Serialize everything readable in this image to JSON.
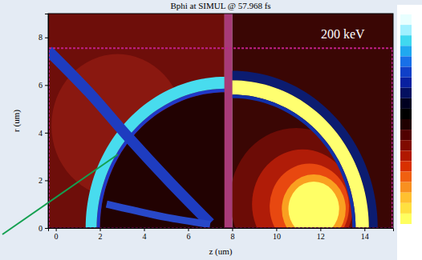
{
  "chart_data": {
    "type": "field_map",
    "title": "Bphi at SIMUL @ 57.968 fs",
    "x_label": "z (um)",
    "y_label": "r (um)",
    "annotation": "200 keV",
    "xlim": [
      -0.35,
      15.3
    ],
    "ylim": [
      0,
      9
    ],
    "xticks": [
      0,
      2,
      4,
      6,
      8,
      10,
      12,
      14
    ],
    "yticks": [
      0,
      2,
      4,
      6,
      8
    ],
    "grid": false,
    "series": [
      {
        "type": "rect",
        "z": [
          -0.35,
          7.65
        ],
        "r": [
          0,
          9
        ],
        "color": "#6e0e0a"
      },
      {
        "type": "disk",
        "center": [
          2.8,
          4.3
        ],
        "radius": 3.0,
        "zclip": [
          -0.35,
          7.65
        ],
        "color": "#8a1810"
      },
      {
        "type": "rect",
        "z": [
          8.0,
          15.3
        ],
        "r": [
          0,
          9
        ],
        "color": "#3a0604"
      },
      {
        "type": "disk",
        "center": [
          7.7,
          0
        ],
        "radius": 5.7,
        "zclip": [
          -0.35,
          7.65
        ],
        "color": "#220202"
      },
      {
        "type": "annulus",
        "center": [
          7.7,
          0
        ],
        "radii": [
          5.7,
          5.85
        ],
        "zclip": [
          -0.35,
          7.65
        ],
        "color": "#2038c8"
      },
      {
        "type": "annulus",
        "center": [
          7.7,
          0
        ],
        "radii": [
          5.85,
          6.35
        ],
        "zclip": [
          -0.35,
          7.65
        ],
        "color": "#48dcee"
      },
      {
        "type": "band",
        "points": [
          [
            -0.35,
            7.45
          ],
          [
            1.5,
            5.7
          ],
          [
            3.3,
            3.8
          ],
          [
            5.2,
            1.9
          ],
          [
            7.0,
            0.2
          ]
        ],
        "width": 0.45,
        "zclip": [
          -0.35,
          7.65
        ],
        "color": "#1e3cc0"
      },
      {
        "type": "band",
        "points": [
          [
            2.3,
            1.0
          ],
          [
            3.5,
            0.75
          ],
          [
            5.0,
            0.45
          ],
          [
            7.0,
            0.15
          ]
        ],
        "width": 0.3,
        "zclip": [
          -0.35,
          7.65
        ],
        "color": "#2848c8"
      },
      {
        "type": "disk",
        "center": [
          10.9,
          1.2
        ],
        "radius": 3.0,
        "zclip": [
          8.0,
          15.3
        ],
        "color": "#6c0c06"
      },
      {
        "type": "disk",
        "center": [
          11.2,
          1.0
        ],
        "radius": 2.3,
        "zclip": [
          8.0,
          15.3
        ],
        "color": "#b01c08"
      },
      {
        "type": "disk",
        "center": [
          11.5,
          0.9
        ],
        "radius": 1.8,
        "zclip": [
          8.0,
          15.3
        ],
        "color": "#e84810"
      },
      {
        "type": "disk",
        "center": [
          11.7,
          0.8
        ],
        "radius": 1.45,
        "zclip": [
          8.0,
          15.3
        ],
        "color": "#faa020"
      },
      {
        "type": "disk",
        "center": [
          11.7,
          0.8
        ],
        "radius": 1.15,
        "zclip": [
          8.0,
          15.3
        ],
        "color": "#ffff66"
      },
      {
        "type": "annulus",
        "center": [
          8.0,
          0
        ],
        "radii": [
          6.2,
          6.6
        ],
        "zclip": [
          8.0,
          15.3
        ],
        "color": "#0c1c70"
      },
      {
        "type": "annulus",
        "center": [
          8.0,
          0
        ],
        "radii": [
          5.6,
          6.2
        ],
        "zclip": [
          8.0,
          15.3
        ],
        "color": "#ffff70"
      },
      {
        "type": "annulus",
        "center": [
          8.0,
          0
        ],
        "radii": [
          5.45,
          5.6
        ],
        "zclip": [
          8.0,
          15.3
        ],
        "color": "#1030a8"
      },
      {
        "type": "rect",
        "z": [
          7.65,
          8.0
        ],
        "r": [
          0,
          9
        ],
        "color": "#a83a78"
      },
      {
        "type": "boundary",
        "z": [
          -0.35,
          15.3
        ],
        "r": [
          0,
          7.55
        ],
        "color": "#c0208a",
        "line_style": "dashed"
      }
    ],
    "colorbar": {
      "colors": [
        "#e8ffff",
        "#a0f0ff",
        "#40d8f0",
        "#20a8f0",
        "#1870e8",
        "#1040c8",
        "#0820a0",
        "#041060",
        "#000020",
        "#000000",
        "#200000",
        "#500000",
        "#800a00",
        "#b01800",
        "#d83000",
        "#f06010",
        "#f89020",
        "#ffc030",
        "#ffe040",
        "#ffff60"
      ]
    }
  }
}
